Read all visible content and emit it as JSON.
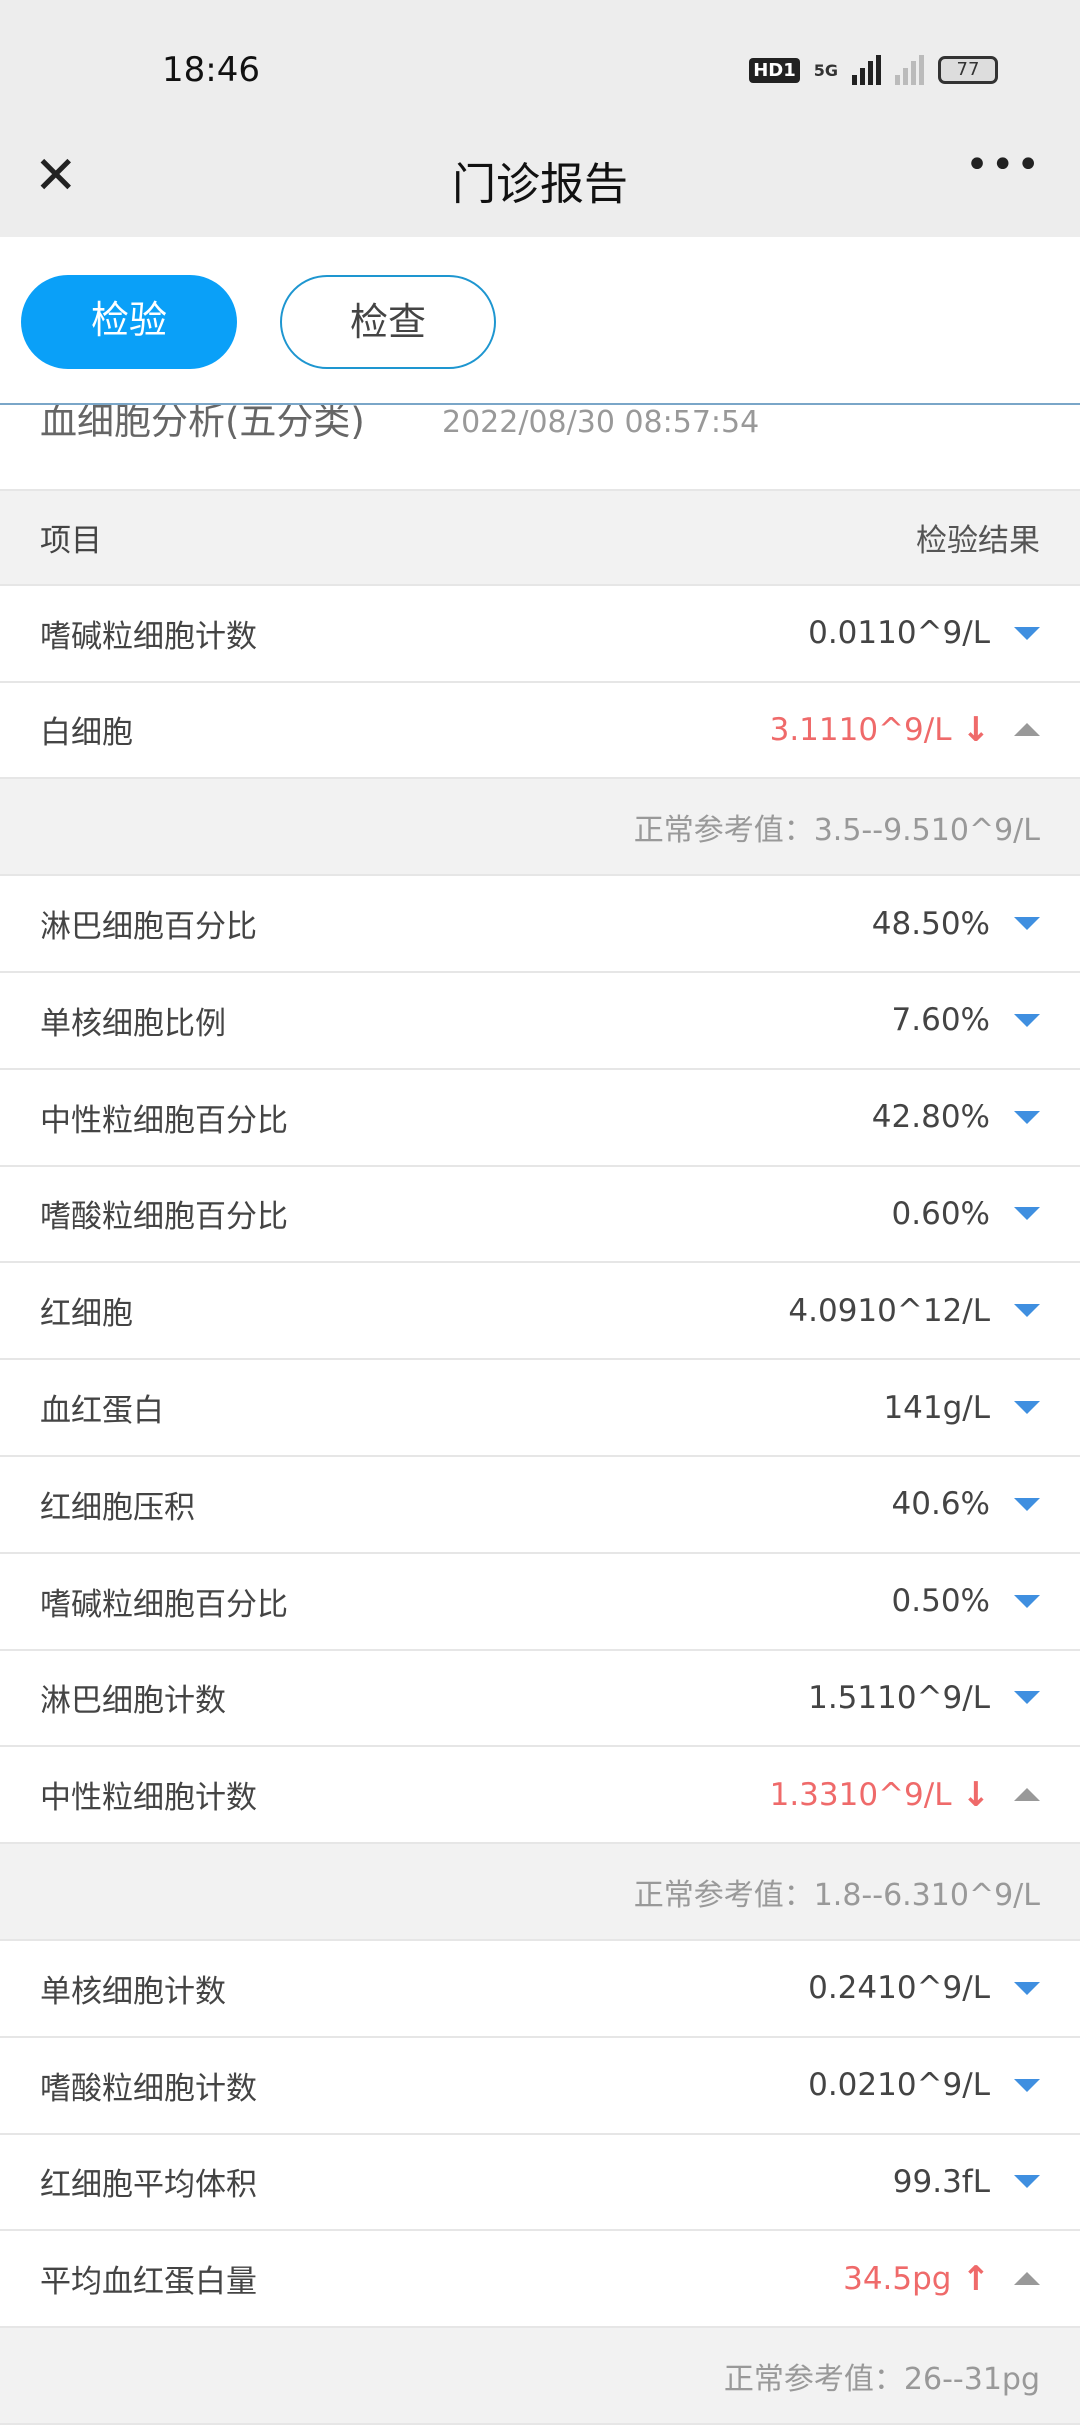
{
  "status": {
    "time": "18:46",
    "hd": "HD1",
    "net": "5G",
    "battery": "77"
  },
  "nav": {
    "title": "门诊报告",
    "close_icon": "close-icon",
    "more_icon": "more-icon"
  },
  "tabs": [
    {
      "label": "检验",
      "active": true
    },
    {
      "label": "检查",
      "active": false
    }
  ],
  "section": {
    "name": "血细胞分析(五分类)",
    "datetime": "2022/08/30 08:57:54"
  },
  "table": {
    "col_item": "项目",
    "col_result": "检验结果"
  },
  "rows": [
    {
      "name": "嗜碱粒细胞计数",
      "value": "0.0110^9/L"
    },
    {
      "name": "白细胞",
      "value": "3.1110^9/L",
      "flag": "low",
      "ref": "正常参考值：3.5--9.510^9/L"
    },
    {
      "name": "淋巴细胞百分比",
      "value": "48.50%"
    },
    {
      "name": "单核细胞比例",
      "value": "7.60%"
    },
    {
      "name": "中性粒细胞百分比",
      "value": "42.80%"
    },
    {
      "name": "嗜酸粒细胞百分比",
      "value": "0.60%"
    },
    {
      "name": "红细胞",
      "value": "4.0910^12/L"
    },
    {
      "name": "血红蛋白",
      "value": "141g/L"
    },
    {
      "name": "红细胞压积",
      "value": "40.6%"
    },
    {
      "name": "嗜碱粒细胞百分比",
      "value": "0.50%"
    },
    {
      "name": "淋巴细胞计数",
      "value": "1.5110^9/L"
    },
    {
      "name": "中性粒细胞计数",
      "value": "1.3310^9/L",
      "flag": "low",
      "ref": "正常参考值：1.8--6.310^9/L"
    },
    {
      "name": "单核细胞计数",
      "value": "0.2410^9/L"
    },
    {
      "name": "嗜酸粒细胞计数",
      "value": "0.0210^9/L"
    },
    {
      "name": "红细胞平均体积",
      "value": "99.3fL"
    },
    {
      "name": "平均血红蛋白量",
      "value": "34.5pg",
      "flag": "high",
      "ref": "正常参考值：26--31pg"
    }
  ],
  "colors": {
    "accent": "#0aa0f8",
    "abnormal": "#ef6a6a",
    "expand": "#3f8fe0"
  }
}
